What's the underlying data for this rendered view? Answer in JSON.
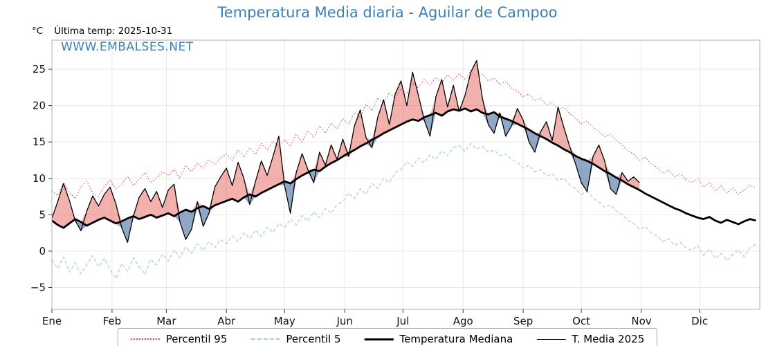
{
  "title": "Temperatura Media diaria - Aguilar de Campoo",
  "unit_label": "°C",
  "last_temp_label": "Última temp: 2025-10-31",
  "watermark": "WWW.EMBALSES.NET",
  "colors": {
    "title_blue": "#3c7eb8",
    "p95_red": "#dd3c3c",
    "p5_lightblue": "#a6cee3",
    "median_black": "#000000",
    "t2025_black": "#000000",
    "fill_above": "rgba(222,60,50,0.40)",
    "fill_below": "rgba(70,110,160,0.60)",
    "grid": "#e7e7e7",
    "frame": "#b0b0b0"
  },
  "legend": {
    "items": [
      {
        "label": "Percentil 95"
      },
      {
        "label": "Percentil 5"
      },
      {
        "label": "Temperatura Mediana"
      },
      {
        "label": "T. Media 2025"
      }
    ]
  },
  "chart_data": {
    "type": "line",
    "title": "Temperatura Media diaria - Aguilar de Campoo",
    "xlabel": "",
    "ylabel": "°C",
    "ylim": [
      -8,
      29
    ],
    "yticks": [
      -5,
      0,
      5,
      10,
      15,
      20,
      25
    ],
    "grid": true,
    "legend_position": "bottom",
    "x_unit": "day_of_year",
    "month_ticks": {
      "labels": [
        "Ene",
        "Feb",
        "Mar",
        "Abr",
        "May",
        "Jun",
        "Jul",
        "Ago",
        "Sep",
        "Oct",
        "Nov",
        "Dic"
      ],
      "days": [
        1,
        32,
        60,
        91,
        121,
        152,
        182,
        213,
        244,
        274,
        305,
        335
      ]
    },
    "days": [
      1,
      4,
      7,
      10,
      13,
      16,
      19,
      22,
      25,
      28,
      31,
      34,
      37,
      40,
      43,
      46,
      49,
      52,
      55,
      58,
      61,
      64,
      67,
      70,
      73,
      76,
      79,
      82,
      85,
      88,
      91,
      94,
      97,
      100,
      103,
      106,
      109,
      112,
      115,
      118,
      121,
      124,
      127,
      130,
      133,
      136,
      139,
      142,
      145,
      148,
      151,
      154,
      157,
      160,
      163,
      166,
      169,
      172,
      175,
      178,
      181,
      184,
      187,
      190,
      193,
      196,
      199,
      202,
      205,
      208,
      211,
      214,
      217,
      220,
      223,
      226,
      229,
      232,
      235,
      238,
      241,
      244,
      247,
      250,
      253,
      256,
      259,
      262,
      265,
      268,
      271,
      274,
      277,
      280,
      283,
      286,
      289,
      292,
      295,
      298,
      301,
      304,
      307,
      310,
      313,
      316,
      319,
      322,
      325,
      328,
      331,
      334,
      337,
      340,
      343,
      346,
      349,
      352,
      355,
      358,
      361,
      364
    ],
    "series": [
      {
        "name": "Percentil 95",
        "style": "dotted",
        "color": "#dd3c3c",
        "values": [
          8.3,
          7.6,
          9.4,
          8.1,
          7.2,
          8.8,
          9.6,
          8.0,
          7.5,
          8.9,
          9.8,
          8.5,
          9.2,
          10.3,
          9.0,
          9.9,
          10.8,
          9.4,
          10.1,
          10.9,
          10.4,
          11.2,
          10.0,
          11.8,
          10.9,
          12.1,
          11.4,
          12.6,
          11.9,
          12.8,
          13.4,
          12.5,
          13.9,
          12.9,
          14.2,
          13.3,
          14.8,
          13.9,
          15.1,
          14.4,
          15.3,
          14.4,
          16.1,
          15.0,
          16.6,
          15.6,
          17.2,
          16.2,
          17.6,
          16.8,
          18.2,
          17.4,
          19.1,
          18.4,
          20.2,
          19.3,
          21.1,
          20.3,
          21.8,
          21.0,
          22.3,
          21.6,
          23.1,
          22.4,
          23.6,
          22.8,
          23.9,
          23.2,
          24.2,
          23.5,
          24.4,
          23.6,
          24.8,
          23.9,
          24.3,
          23.4,
          23.8,
          22.9,
          23.3,
          22.4,
          22.0,
          21.2,
          21.6,
          20.7,
          21.0,
          20.1,
          20.4,
          19.5,
          19.8,
          18.9,
          18.3,
          17.5,
          17.9,
          17.0,
          16.5,
          15.7,
          16.1,
          15.2,
          14.6,
          13.8,
          13.3,
          12.5,
          12.9,
          12.0,
          11.5,
          10.7,
          11.1,
          10.2,
          10.6,
          9.8,
          9.4,
          10.0,
          8.8,
          9.5,
          8.3,
          9.0,
          8.0,
          8.7,
          7.8,
          8.4,
          9.1,
          8.6
        ]
      },
      {
        "name": "Percentil 5",
        "style": "dashed",
        "color": "#a6cee3",
        "values": [
          -1.2,
          -2.4,
          -0.8,
          -2.9,
          -1.6,
          -3.1,
          -1.9,
          -0.6,
          -2.2,
          -1.0,
          -2.6,
          -3.8,
          -1.7,
          -2.8,
          -0.9,
          -2.1,
          -3.2,
          -1.1,
          -1.9,
          -0.4,
          -1.4,
          0.2,
          -0.9,
          0.6,
          -0.3,
          1.0,
          0.1,
          1.3,
          0.5,
          1.6,
          1.0,
          2.1,
          1.3,
          2.5,
          1.7,
          2.9,
          2.0,
          3.3,
          2.6,
          3.8,
          3.2,
          4.4,
          3.6,
          4.9,
          4.1,
          5.4,
          4.6,
          5.9,
          5.2,
          6.4,
          6.8,
          8.0,
          7.2,
          8.6,
          7.8,
          9.3,
          8.6,
          10.0,
          9.4,
          10.8,
          11.2,
          12.3,
          11.6,
          12.8,
          12.1,
          13.3,
          12.6,
          13.8,
          13.1,
          14.2,
          14.5,
          13.7,
          14.8,
          14.0,
          14.4,
          13.6,
          13.9,
          13.1,
          13.4,
          12.6,
          12.2,
          11.4,
          11.8,
          10.9,
          11.2,
          10.3,
          10.6,
          9.7,
          10.0,
          9.1,
          8.6,
          7.8,
          8.2,
          7.3,
          6.8,
          6.0,
          6.4,
          5.5,
          5.0,
          4.2,
          3.8,
          3.0,
          3.4,
          2.5,
          2.1,
          1.3,
          1.7,
          0.8,
          1.2,
          0.4,
          0.1,
          0.8,
          -0.6,
          0.3,
          -1.0,
          -0.3,
          -1.3,
          -0.5,
          0.2,
          -0.8,
          0.5,
          0.9
        ]
      },
      {
        "name": "Temperatura Mediana",
        "style": "solid-thick",
        "color": "#000000",
        "values": [
          4.2,
          3.6,
          3.2,
          3.8,
          4.4,
          4.0,
          3.5,
          3.9,
          4.3,
          4.6,
          4.2,
          3.8,
          4.1,
          4.5,
          4.8,
          4.4,
          4.7,
          5.0,
          4.6,
          4.9,
          5.2,
          4.8,
          5.3,
          5.7,
          5.4,
          5.9,
          6.2,
          5.8,
          6.3,
          6.6,
          6.9,
          7.2,
          6.8,
          7.4,
          7.8,
          7.5,
          8.0,
          8.4,
          8.8,
          9.2,
          9.6,
          9.3,
          9.9,
          10.4,
          10.8,
          11.2,
          11.0,
          11.6,
          12.1,
          12.5,
          13.0,
          13.5,
          13.9,
          14.4,
          14.8,
          15.3,
          15.7,
          16.2,
          16.6,
          17.0,
          17.4,
          17.8,
          18.1,
          17.9,
          18.4,
          18.7,
          19.0,
          18.6,
          19.2,
          19.5,
          19.3,
          19.6,
          19.2,
          19.5,
          19.0,
          18.8,
          19.1,
          18.5,
          18.2,
          17.9,
          17.5,
          17.1,
          16.7,
          16.2,
          15.8,
          15.4,
          14.9,
          14.5,
          14.0,
          13.6,
          13.1,
          12.7,
          12.4,
          12.0,
          11.5,
          11.0,
          10.6,
          10.1,
          9.7,
          9.2,
          8.8,
          8.4,
          7.9,
          7.5,
          7.1,
          6.7,
          6.3,
          5.9,
          5.6,
          5.2,
          4.9,
          4.6,
          4.4,
          4.7,
          4.2,
          3.9,
          4.3,
          4.0,
          3.7,
          4.1,
          4.4,
          4.2
        ]
      },
      {
        "name": "T. Media 2025",
        "style": "solid-thin",
        "color": "#000000",
        "values": [
          4.5,
          6.8,
          9.3,
          7.0,
          4.2,
          2.8,
          5.5,
          7.6,
          6.2,
          7.8,
          8.8,
          6.5,
          3.2,
          1.2,
          4.8,
          7.4,
          8.6,
          6.8,
          8.2,
          6.0,
          8.4,
          9.2,
          4.0,
          1.6,
          3.0,
          6.8,
          3.4,
          5.2,
          8.8,
          10.2,
          11.4,
          9.0,
          12.2,
          10.0,
          6.4,
          9.6,
          12.4,
          10.4,
          13.0,
          15.8,
          9.0,
          5.2,
          10.8,
          13.4,
          11.2,
          9.4,
          13.6,
          11.8,
          14.6,
          12.6,
          15.4,
          13.0,
          17.2,
          19.4,
          15.6,
          14.2,
          18.4,
          20.8,
          17.4,
          21.6,
          23.4,
          20.0,
          24.6,
          21.4,
          18.0,
          15.8,
          21.2,
          23.6,
          19.8,
          22.8,
          19.2,
          21.4,
          24.6,
          26.2,
          21.0,
          17.4,
          16.2,
          19.0,
          15.8,
          17.2,
          19.6,
          18.0,
          15.0,
          13.6,
          16.4,
          17.8,
          15.2,
          19.8,
          17.0,
          14.4,
          12.0,
          9.4,
          8.2,
          13.0,
          14.6,
          12.4,
          8.6,
          7.8,
          10.8,
          9.6,
          10.2,
          9.4
        ]
      }
    ],
    "fills": {
      "description": "area between T. Media 2025 and Temperatura Mediana",
      "above_color": "rgba(222,60,50,0.40)",
      "below_color": "rgba(70,110,160,0.60)"
    }
  }
}
